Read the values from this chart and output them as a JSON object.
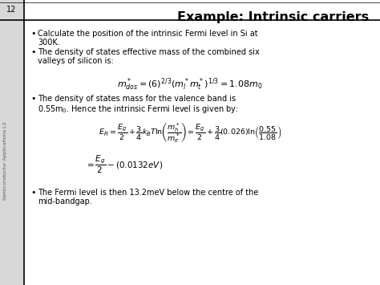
{
  "title": "Example: Intrinsic carriers",
  "slide_number": "12",
  "side_text": "Semiconductor Applications L3",
  "background_color": "#d8d8d8",
  "content_bg": "#ffffff",
  "header_bg": "#ffffff",
  "title_fontsize": 11.5,
  "body_fontsize": 7.0,
  "math_fontsize": 7.5,
  "small_math_fontsize": 6.8
}
